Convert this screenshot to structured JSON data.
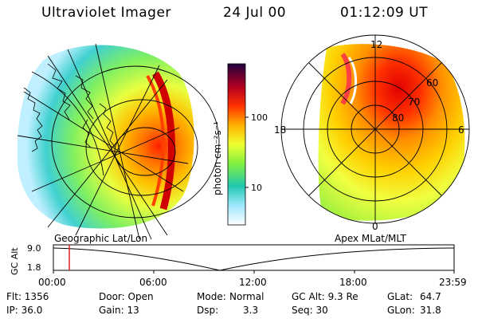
{
  "header": {
    "instrument": "Ultraviolet Imager",
    "date": "24 Jul 00",
    "time": "01:12:09 UT"
  },
  "colorbar": {
    "unit_label": "photon cm⁻²s⁻¹",
    "tick_100": "100",
    "tick_10": "10"
  },
  "left_panel": {
    "caption": "Geographic Lat/Lon"
  },
  "right_panel": {
    "caption": "Apex MLat/MLT",
    "mlt_labels": {
      "top": "12",
      "left": "18",
      "right": "6",
      "bottom": "0"
    },
    "mlat_labels": [
      "60",
      "70",
      "80"
    ]
  },
  "orbit_plot": {
    "ylabel": "GC Alt",
    "ytick_top": "9.0",
    "ytick_bottom": "1.8",
    "xticks": [
      "00:00",
      "06:00",
      "12:00",
      "18:00",
      "23:59"
    ],
    "marker_time": "01:12"
  },
  "status": {
    "row1": {
      "flt": "Flt: 1356",
      "door": "Door: Open",
      "mode_label": "Mode:",
      "mode_value": "Normal",
      "gc_alt": "GC Alt: 9.3 Re",
      "glat_label": "GLat:",
      "glat_value": "64.7"
    },
    "row2": {
      "ip": "IP: 36.0",
      "gain": "Gain: 13",
      "dsp_label": "Dsp:",
      "dsp_value": "3.3",
      "seq": "Seq: 30",
      "glon_label": "GLon:",
      "glon_value": "31.8"
    }
  },
  "colors": {
    "background": "#ffffff",
    "marker": "#e02020",
    "scale": [
      "#ffffff",
      "#7fd8ff",
      "#20c8a0",
      "#c8ff40",
      "#ffe000",
      "#ff9000",
      "#ff2000",
      "#a00020",
      "#200040"
    ]
  }
}
